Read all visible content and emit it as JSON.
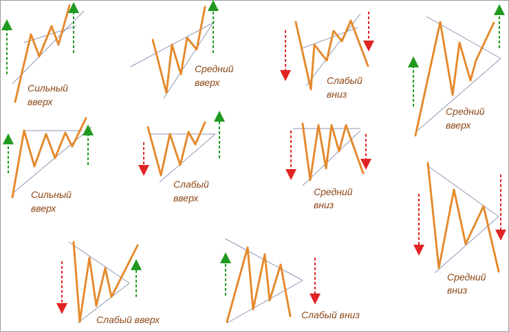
{
  "patterns": [
    {
      "label": [
        "Сильный",
        "вверх"
      ]
    },
    {
      "label": [
        "Средний",
        "вверх"
      ]
    },
    {
      "label": [
        "Слабый",
        "вниз"
      ]
    },
    {
      "label": [
        "Средний",
        "вверх"
      ]
    },
    {
      "label": [
        "Сильный",
        "вверх"
      ]
    },
    {
      "label": [
        "Слабый",
        "вверх"
      ]
    },
    {
      "label": [
        "Средний",
        "вниз"
      ]
    },
    {
      "label": [
        "Средний",
        "вниз"
      ]
    },
    {
      "label": [
        "Слабый вверх"
      ]
    },
    {
      "label": [
        "Слабый вниз"
      ]
    }
  ]
}
